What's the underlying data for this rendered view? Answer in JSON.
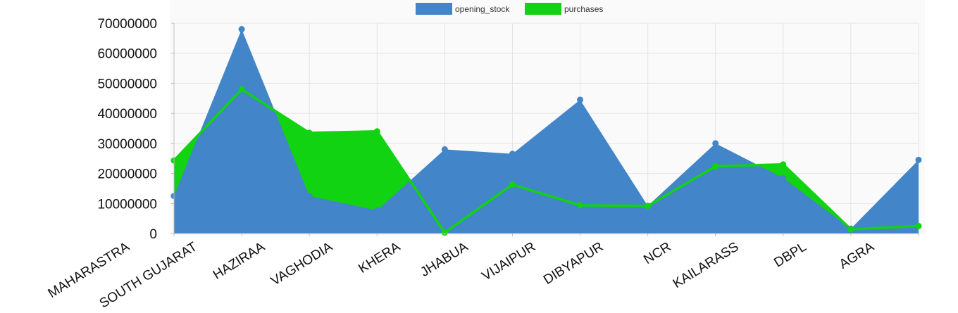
{
  "chart_data": {
    "type": "area",
    "categories": [
      "MAHARASTRA",
      "SOUTH GUJARAT",
      "HAZIRAA",
      "VAGHODIA",
      "KHERA",
      "JHABUA",
      "VIJAIPUR",
      "DIBYAPUR",
      "NCR",
      "KAILARASS",
      "DBPL",
      "AGRA"
    ],
    "series": [
      {
        "name": "opening_stock",
        "values": [
          12500000,
          68000000,
          12500000,
          7700000,
          28000000,
          26500000,
          44500000,
          9200000,
          30000000,
          18500000,
          1600000,
          24500000
        ],
        "color": "#4285c8",
        "style": "filled-area"
      },
      {
        "name": "purchases",
        "values": [
          24300000,
          48000000,
          33500000,
          34000000,
          300000,
          16300000,
          9400000,
          9200000,
          22400000,
          23000000,
          1400000,
          2500000
        ],
        "color": "#11d311",
        "style": "line-with-fill-above-opening-stock"
      }
    ],
    "yticks": [
      "70000000",
      "60000000",
      "50000000",
      "40000000",
      "30000000",
      "20000000",
      "10000000",
      "0"
    ],
    "ylim": [
      0,
      70000000
    ],
    "xlabel": "",
    "ylabel": "",
    "grid": true,
    "legend": "top-center"
  }
}
